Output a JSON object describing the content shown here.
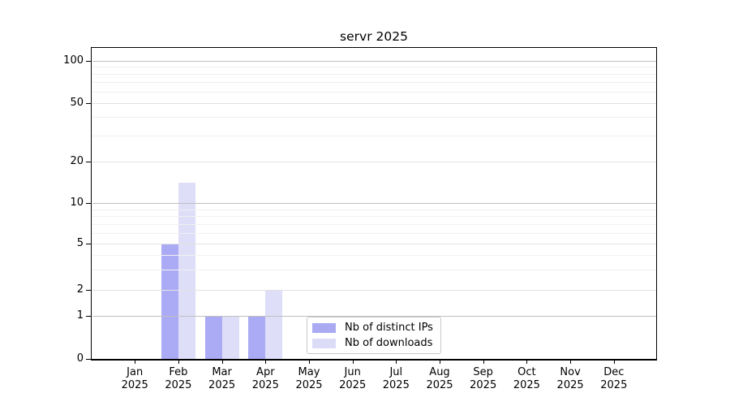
{
  "title": "servr 2025",
  "legend": {
    "items": [
      {
        "label": "Nb of distinct IPs",
        "color": "#aaaaf2"
      },
      {
        "label": "Nb of downloads",
        "color": "#dcdcf8"
      }
    ]
  },
  "chart_data": {
    "type": "bar",
    "title": "servr 2025",
    "categories": [
      "Jan",
      "Feb",
      "Mar",
      "Apr",
      "May",
      "Jun",
      "Jul",
      "Aug",
      "Sep",
      "Oct",
      "Nov",
      "Dec"
    ],
    "x_year": "2025",
    "series": [
      {
        "name": "Nb of distinct IPs",
        "color": "#aaaaf2",
        "fill": "rgba(150,150,242,0.8)",
        "values": [
          0,
          5,
          1,
          1,
          0,
          0,
          0,
          0,
          0,
          0,
          0,
          0
        ]
      },
      {
        "name": "Nb of downloads",
        "color": "#dcdcf8",
        "fill": "rgba(214,214,248,0.8)",
        "values": [
          0,
          14,
          1,
          2,
          0,
          0,
          0,
          0,
          0,
          0,
          0,
          0
        ]
      }
    ],
    "yticks": [
      0,
      1,
      2,
      5,
      10,
      20,
      50,
      100
    ],
    "minor_gridlines": [
      3,
      4,
      6,
      7,
      8,
      9,
      30,
      40,
      60,
      70,
      80,
      90
    ],
    "y_scale": "log above 1, linear 0-1",
    "ylim": [
      0,
      120
    ],
    "xlabel": "",
    "ylabel": "",
    "grid": true,
    "legend_position": "bottom center",
    "grid_colors": {
      "decade": "#bfbfbf",
      "submajor": "#e2e2e2",
      "minor": "#f0f0f0"
    }
  }
}
